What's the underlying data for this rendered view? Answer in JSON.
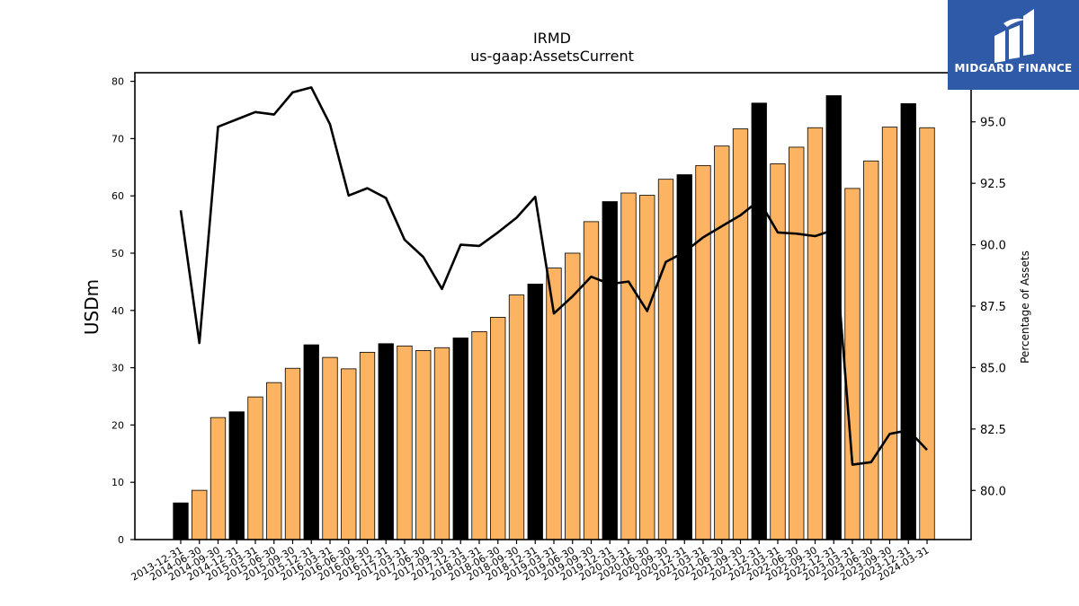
{
  "chart_data": {
    "type": "bar",
    "title": "IRMD",
    "subtitle": "us-gaap:AssetsCurrent",
    "ylabel": "USDm",
    "y2label": "Percentage of Assets",
    "ylim": [
      0,
      81.5
    ],
    "y2lim": [
      78.0,
      97.0
    ],
    "yticks": [
      "0",
      "10",
      "20",
      "30",
      "40",
      "50",
      "60",
      "70",
      "80"
    ],
    "y2ticks": [
      "80.0",
      "82.5",
      "85.0",
      "87.5",
      "90.0",
      "92.5",
      "95.0"
    ],
    "grid": false,
    "categories": [
      "2013-12-31",
      "2014-06-30",
      "2014-09-30",
      "2014-12-31",
      "2015-03-31",
      "2015-06-30",
      "2015-09-30",
      "2015-12-31",
      "2016-03-31",
      "2016-06-30",
      "2016-09-30",
      "2016-12-31",
      "2017-03-31",
      "2017-06-30",
      "2017-09-30",
      "2017-12-31",
      "2018-03-31",
      "2018-06-30",
      "2018-09-30",
      "2018-12-31",
      "2019-03-31",
      "2019-06-30",
      "2019-09-30",
      "2019-12-31",
      "2020-03-31",
      "2020-06-30",
      "2020-09-30",
      "2020-12-31",
      "2021-03-31",
      "2021-06-30",
      "2021-09-30",
      "2021-12-31",
      "2022-03-31",
      "2022-06-30",
      "2022-09-30",
      "2022-12-31",
      "2023-03-31",
      "2023-06-30",
      "2023-09-30",
      "2023-12-31",
      "2024-03-31"
    ],
    "series": [
      {
        "kind": "bar",
        "values": [
          6.4,
          8.6,
          21.3,
          22.3,
          24.9,
          27.4,
          29.9,
          34.0,
          31.8,
          29.8,
          32.7,
          34.2,
          33.8,
          33.0,
          33.5,
          35.2,
          36.3,
          38.8,
          42.7,
          44.6,
          47.4,
          50.0,
          55.5,
          59.0,
          60.5,
          60.1,
          62.9,
          63.7,
          65.3,
          68.7,
          71.7,
          76.2,
          65.6,
          68.5,
          71.9,
          77.5,
          61.3,
          66.1,
          72.0,
          76.1,
          71.9
        ],
        "annual": [
          true,
          false,
          false,
          true,
          false,
          false,
          false,
          true,
          false,
          false,
          false,
          true,
          false,
          false,
          false,
          true,
          false,
          false,
          false,
          true,
          false,
          false,
          false,
          true,
          false,
          false,
          false,
          true,
          false,
          false,
          false,
          true,
          false,
          false,
          false,
          true,
          false,
          false,
          false,
          true,
          false
        ]
      },
      {
        "kind": "line",
        "axis": "right",
        "values": [
          91.4,
          86.0,
          94.8,
          95.1,
          95.4,
          95.3,
          96.2,
          96.4,
          94.9,
          92.0,
          92.3,
          91.9,
          90.2,
          89.5,
          88.2,
          90.0,
          89.95,
          90.5,
          91.1,
          91.95,
          87.2,
          87.9,
          88.7,
          88.4,
          88.5,
          87.3,
          89.3,
          89.7,
          90.3,
          90.75,
          91.2,
          91.8,
          90.5,
          90.45,
          90.35,
          90.6,
          81.05,
          81.15,
          82.3,
          82.45,
          81.65
        ]
      }
    ],
    "colors": {
      "bar_quarter": "#fdb462",
      "bar_annual": "#000000",
      "line": "#000000"
    }
  },
  "logo": {
    "text": "MIDGARD FINANCE",
    "icon": "midgard-logo-icon",
    "bg": "#2f5aa8"
  }
}
